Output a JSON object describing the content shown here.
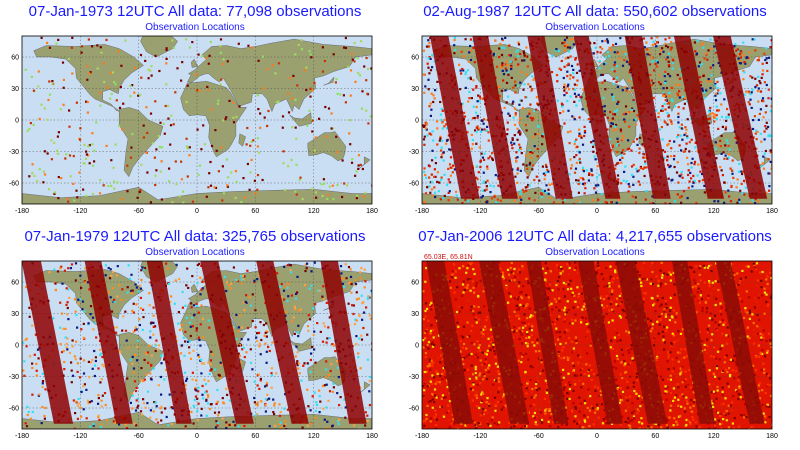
{
  "panels": [
    {
      "title": "07-Jan-1973 12UTC All data: 77,098 observations",
      "subtitle": "Observation Locations",
      "coverage": 0.05,
      "ocean_color": "#c9def2",
      "land_color": "#9aa070",
      "point_colors": [
        "#7a0000",
        "#7a0000",
        "#ff7a1a",
        "#90e060",
        "#c83200",
        "#a8d860"
      ],
      "swaths": 0
    },
    {
      "title": "02-Aug-1987 12UTC All data: 550,602 observations",
      "subtitle": "Observation Locations",
      "coverage": 0.75,
      "ocean_color": "#c9def2",
      "land_color": "#9aa070",
      "point_colors": [
        "#7a0000",
        "#d81800",
        "#ff7a1a",
        "#33e0f0",
        "#0a1880",
        "#e83c00"
      ],
      "swaths": 7
    },
    {
      "title": "07-Jan-1979 12UTC All data: 325,765 observations",
      "subtitle": "Observation Locations",
      "coverage": 0.4,
      "ocean_color": "#c9def2",
      "land_color": "#9aa070",
      "point_colors": [
        "#7a0000",
        "#d81800",
        "#ff8a1a",
        "#33e0f0",
        "#0a1880",
        "#ffa040"
      ],
      "swaths": 6
    },
    {
      "title": "07-Jan-2006 12UTC All data: 4,217,655 observations",
      "subtitle": "Observation Locations",
      "coverage": 1.0,
      "ocean_color": "#e01400",
      "land_color": "#e01400",
      "point_colors": [
        "#b00000",
        "#ff3000",
        "#ff7000",
        "#ffe000",
        "#7a0000",
        "#e02000"
      ],
      "swaths": 7,
      "coordinate_readout": "65.03E, 65.81N"
    }
  ],
  "axes": {
    "x_ticks": [
      "-180",
      "-120",
      "-60",
      "0",
      "60",
      "120",
      "180"
    ],
    "y_ticks": [
      "60",
      "30",
      "0",
      "-30",
      "-60"
    ]
  }
}
